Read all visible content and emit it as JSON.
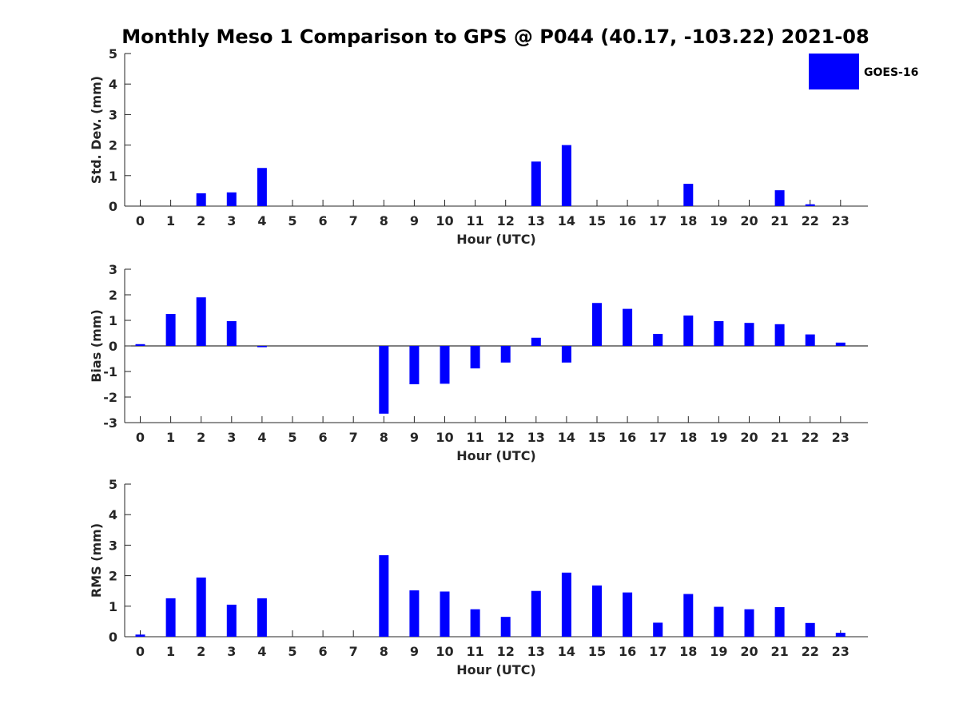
{
  "title": "Monthly Meso 1 Comparison to GPS @ P044 (40.17, -103.22) 2021-08",
  "legend": {
    "label": "GOES-16",
    "color": "#0000ff",
    "placement": "top-right"
  },
  "chart_data": [
    {
      "type": "bar",
      "ylabel": "Std. Dev. (mm)",
      "xlabel": "Hour (UTC)",
      "ylim": [
        0,
        5
      ],
      "yticks": [
        0,
        1,
        2,
        3,
        4,
        5
      ],
      "categories": [
        "0",
        "1",
        "2",
        "3",
        "4",
        "5",
        "6",
        "7",
        "8",
        "9",
        "10",
        "11",
        "12",
        "13",
        "14",
        "15",
        "16",
        "17",
        "18",
        "19",
        "20",
        "21",
        "22",
        "23"
      ],
      "series": [
        {
          "name": "GOES-16",
          "color": "#0000ff",
          "values": [
            0,
            0,
            0.42,
            0.45,
            1.25,
            0,
            0,
            0,
            0,
            0,
            0,
            0,
            0,
            1.46,
            2.0,
            0,
            0,
            0,
            0.73,
            0,
            0,
            0.52,
            0.06,
            0
          ]
        }
      ]
    },
    {
      "type": "bar",
      "ylabel": "Bias (mm)",
      "xlabel": "Hour (UTC)",
      "ylim": [
        -3,
        3
      ],
      "yticks": [
        -3,
        -2,
        -1,
        0,
        1,
        2,
        3
      ],
      "categories": [
        "0",
        "1",
        "2",
        "3",
        "4",
        "5",
        "6",
        "7",
        "8",
        "9",
        "10",
        "11",
        "12",
        "13",
        "14",
        "15",
        "16",
        "17",
        "18",
        "19",
        "20",
        "21",
        "22",
        "23"
      ],
      "series": [
        {
          "name": "GOES-16",
          "color": "#0000ff",
          "values": [
            0.07,
            1.25,
            1.9,
            0.97,
            -0.05,
            0,
            0,
            0,
            -2.65,
            -1.5,
            -1.48,
            -0.88,
            -0.65,
            0.32,
            -0.65,
            1.68,
            1.45,
            0.47,
            1.19,
            0.97,
            0.9,
            0.85,
            0.45,
            0.13
          ]
        }
      ]
    },
    {
      "type": "bar",
      "ylabel": "RMS (mm)",
      "xlabel": "Hour (UTC)",
      "ylim": [
        0,
        5
      ],
      "yticks": [
        0,
        1,
        2,
        3,
        4,
        5
      ],
      "categories": [
        "0",
        "1",
        "2",
        "3",
        "4",
        "5",
        "6",
        "7",
        "8",
        "9",
        "10",
        "11",
        "12",
        "13",
        "14",
        "15",
        "16",
        "17",
        "18",
        "19",
        "20",
        "21",
        "22",
        "23"
      ],
      "series": [
        {
          "name": "GOES-16",
          "color": "#0000ff",
          "values": [
            0.07,
            1.26,
            1.94,
            1.05,
            1.26,
            0,
            0,
            0,
            2.67,
            1.52,
            1.48,
            0.9,
            0.65,
            1.5,
            2.1,
            1.68,
            1.45,
            0.46,
            1.4,
            0.98,
            0.9,
            0.97,
            0.45,
            0.13
          ]
        }
      ]
    }
  ]
}
